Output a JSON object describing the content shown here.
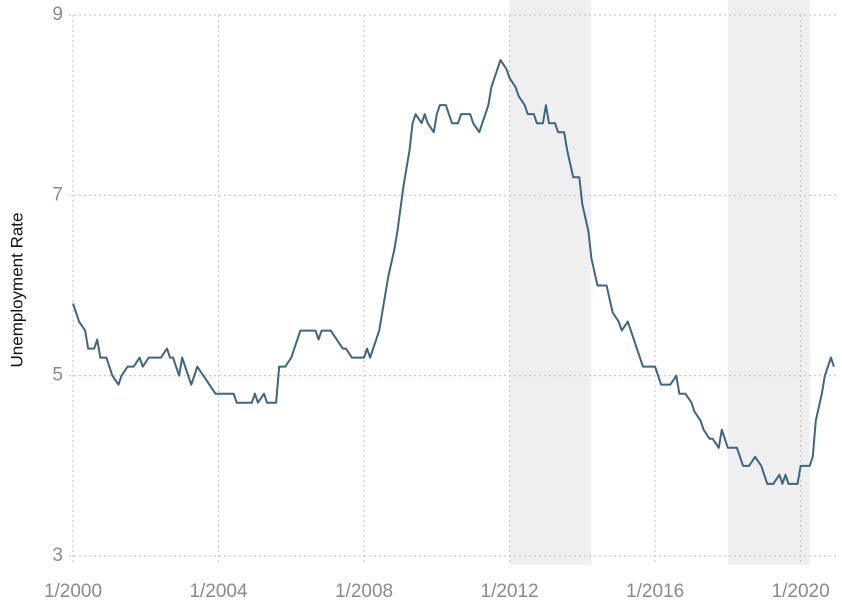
{
  "chart_data": {
    "type": "line",
    "y_label": "Unemployment Rate",
    "x": [
      "1/2000",
      "3/2000",
      "5/2000",
      "6/2000",
      "8/2000",
      "9/2000",
      "10/2000",
      "12/2000",
      "2/2001",
      "4/2001",
      "5/2001",
      "7/2001",
      "9/2001",
      "11/2001",
      "12/2001",
      "2/2002",
      "6/2002",
      "8/2002",
      "9/2002",
      "10/2002",
      "12/2002",
      "1/2003",
      "3/2003",
      "4/2003",
      "6/2003",
      "8/2003",
      "10/2003",
      "12/2003",
      "6/2004",
      "7/2004",
      "12/2004",
      "1/2005",
      "2/2005",
      "4/2005",
      "5/2005",
      "8/2005",
      "9/2005",
      "11/2005",
      "1/2006",
      "2/2006",
      "4/2006",
      "9/2006",
      "10/2006",
      "11/2006",
      "2/2007",
      "4/2007",
      "6/2007",
      "7/2007",
      "9/2007",
      "1/2008",
      "2/2008",
      "3/2008",
      "6/2008",
      "8/2008",
      "9/2008",
      "11/2008",
      "12/2008",
      "2/2009",
      "4/2009",
      "5/2009",
      "6/2009",
      "8/2009",
      "9/2009",
      "10/2009",
      "12/2009",
      "1/2010",
      "2/2010",
      "4/2010",
      "5/2010",
      "6/2010",
      "8/2010",
      "9/2010",
      "12/2010",
      "1/2011",
      "3/2011",
      "4/2011",
      "6/2011",
      "7/2011",
      "9/2011",
      "10/2011",
      "12/2011",
      "1/2012",
      "3/2012",
      "4/2012",
      "6/2012",
      "7/2012",
      "9/2012",
      "10/2012",
      "12/2012",
      "1/2013",
      "2/2013",
      "4/2013",
      "5/2013",
      "7/2013",
      "8/2013",
      "10/2013",
      "12/2013",
      "1/2014",
      "3/2014",
      "4/2014",
      "6/2014",
      "9/2014",
      "11/2014",
      "1/2015",
      "2/2015",
      "4/2015",
      "5/2015",
      "7/2015",
      "9/2015",
      "1/2016",
      "3/2016",
      "6/2016",
      "8/2016",
      "9/2016",
      "11/2016",
      "1/2017",
      "2/2017",
      "4/2017",
      "5/2017",
      "7/2017",
      "8/2017",
      "10/2017",
      "11/2017",
      "1/2018",
      "4/2018",
      "6/2018",
      "8/2018",
      "10/2018",
      "12/2018",
      "1/2019",
      "2/2019",
      "4/2019",
      "6/2019",
      "7/2019",
      "8/2019",
      "9/2019",
      "12/2019",
      "1/2020",
      "4/2020",
      "5/2020",
      "6/2020",
      "8/2020",
      "9/2020",
      "11/2020",
      "12/2020"
    ],
    "series": [
      {
        "name": "Unemployment Rate",
        "color": "#3f6680",
        "values": [
          5.8,
          5.6,
          5.5,
          5.3,
          5.3,
          5.4,
          5.2,
          5.2,
          5.0,
          4.9,
          5.0,
          5.1,
          5.1,
          5.2,
          5.1,
          5.2,
          5.2,
          5.3,
          5.2,
          5.2,
          5.0,
          5.2,
          5.0,
          4.9,
          5.1,
          5.0,
          4.9,
          4.8,
          4.8,
          4.7,
          4.7,
          4.8,
          4.7,
          4.8,
          4.7,
          4.7,
          5.1,
          5.1,
          5.2,
          5.3,
          5.5,
          5.5,
          5.4,
          5.5,
          5.5,
          5.4,
          5.3,
          5.3,
          5.2,
          5.2,
          5.3,
          5.2,
          5.5,
          5.9,
          6.1,
          6.4,
          6.6,
          7.1,
          7.5,
          7.8,
          7.9,
          7.8,
          7.9,
          7.8,
          7.7,
          7.9,
          8.0,
          8.0,
          7.9,
          7.8,
          7.8,
          7.9,
          7.9,
          7.8,
          7.7,
          7.8,
          8.0,
          8.2,
          8.4,
          8.5,
          8.4,
          8.3,
          8.2,
          8.1,
          8.0,
          7.9,
          7.9,
          7.8,
          7.8,
          8.0,
          7.8,
          7.8,
          7.7,
          7.7,
          7.5,
          7.2,
          7.2,
          6.9,
          6.6,
          6.3,
          6.0,
          6.0,
          5.7,
          5.6,
          5.5,
          5.6,
          5.5,
          5.3,
          5.1,
          5.1,
          4.9,
          4.9,
          5.0,
          4.8,
          4.8,
          4.7,
          4.6,
          4.5,
          4.4,
          4.3,
          4.3,
          4.2,
          4.4,
          4.2,
          4.2,
          4.0,
          4.0,
          4.1,
          4.0,
          3.9,
          3.8,
          3.8,
          3.9,
          3.8,
          3.9,
          3.8,
          3.8,
          4.0,
          4.0,
          4.1,
          4.5,
          4.8,
          5.0,
          5.2,
          5.1
        ]
      }
    ],
    "shaded_spans": [
      [
        "1/2012",
        "4/2014"
      ],
      [
        "1/2018",
        "4/2020"
      ]
    ],
    "shade_color": "#efefef",
    "xlim": [
      "1/2000",
      "1/2021"
    ],
    "xticks": [
      "1/2000",
      "1/2004",
      "1/2008",
      "1/2012",
      "1/2016",
      "1/2020"
    ],
    "ylim": [
      2.9,
      9
    ],
    "yticks": [
      3,
      5,
      7,
      9
    ],
    "grid": true
  }
}
